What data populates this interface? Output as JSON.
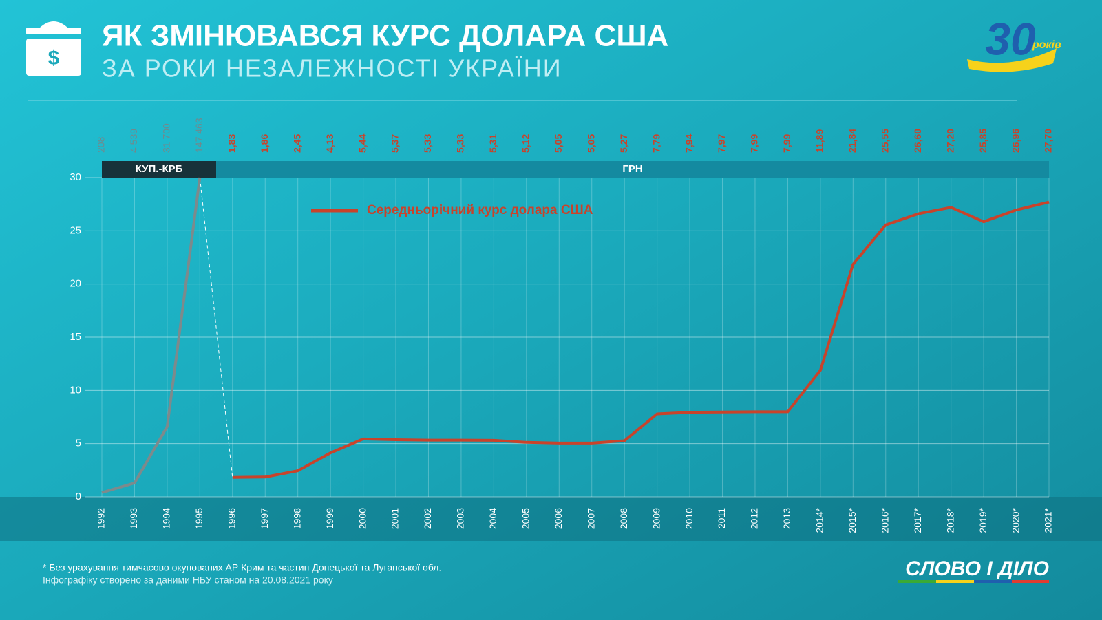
{
  "header": {
    "title": "ЯК ЗМІНЮВАВСЯ КУРС ДОЛАРА США",
    "subtitle": "ЗА РОКИ НЕЗАЛЕЖНОСТІ УКРАЇНИ",
    "logo_number": "30",
    "logo_text": "років"
  },
  "chart_data": {
    "type": "line",
    "categories": [
      "1992",
      "1993",
      "1994",
      "1995",
      "1996",
      "1997",
      "1998",
      "1999",
      "2000",
      "2001",
      "2002",
      "2003",
      "2004",
      "2005",
      "2006",
      "2007",
      "2008",
      "2009",
      "2010",
      "2011",
      "2012",
      "2013",
      "2014*",
      "2015*",
      "2016*",
      "2017*",
      "2018*",
      "2019*",
      "2020*",
      "2021*"
    ],
    "series": [
      {
        "color": "#7d8a8c",
        "values": [
          0.4,
          1.3,
          6.6,
          30,
          null,
          null,
          null,
          null,
          null,
          null,
          null,
          null,
          null,
          null,
          null,
          null,
          null,
          null,
          null,
          null,
          null,
          null,
          null,
          null,
          null,
          null,
          null,
          null,
          null,
          null
        ]
      },
      {
        "name": "Середньорічний курс долара США",
        "color": "#c8432b",
        "values": [
          null,
          null,
          null,
          null,
          1.83,
          1.86,
          2.45,
          4.13,
          5.44,
          5.37,
          5.33,
          5.33,
          5.31,
          5.12,
          5.05,
          5.05,
          5.27,
          7.79,
          7.94,
          7.97,
          7.99,
          7.99,
          11.89,
          21.84,
          25.55,
          26.6,
          27.2,
          25.85,
          26.96,
          27.7
        ],
        "value_labels": [
          null,
          null,
          null,
          null,
          "1,83",
          "1,86",
          "2,45",
          "4,13",
          "5,44",
          "5,37",
          "5,33",
          "5,33",
          "5,31",
          "5,12",
          "5,05",
          "5,05",
          "5,27",
          "7,79",
          "7,94",
          "7,97",
          "7,99",
          "7,99",
          "11,89",
          "21,84",
          "25,55",
          "26,60",
          "27,20",
          "25,85",
          "26,96",
          "27,70"
        ]
      }
    ],
    "karbovanets_rates": [
      "208",
      "4 539",
      "31 700",
      "147 463"
    ],
    "bands": [
      "КУП.-КРБ",
      "ГРН"
    ],
    "ylim": [
      0,
      30
    ],
    "yticks": [
      0,
      5,
      10,
      15,
      20,
      25,
      30
    ],
    "grid": true
  },
  "footer": {
    "note": "* Без урахування тимчасово окупованих АР Крим та частин Донецької та Луганської обл.",
    "source": "Інфографіку створено за даними НБУ станом на 20.08.2021 року",
    "brand": "СЛОВО І ДІЛО"
  }
}
